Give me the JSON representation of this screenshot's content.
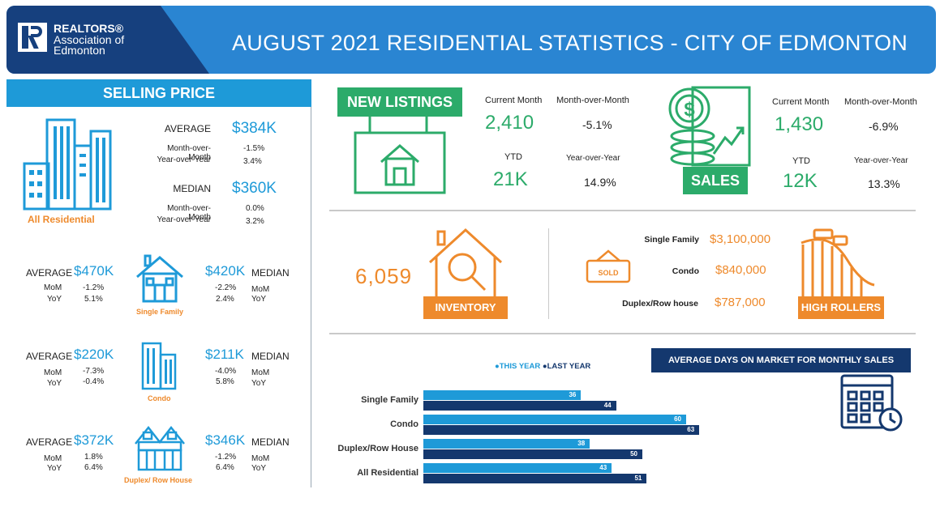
{
  "header": {
    "logo_line1": "REALTORS®",
    "logo_line2": "Association of",
    "logo_line3": "Edmonton",
    "title": "AUGUST 2021 RESIDENTIAL STATISTICS - CITY OF EDMONTON"
  },
  "colors": {
    "brand_blue": "#1e9ad8",
    "navy": "#14386e",
    "green": "#2cab6a",
    "orange": "#ee8a2c"
  },
  "selling_price": {
    "heading": "SELLING PRICE",
    "all_residential": {
      "label": "All Residential",
      "average_label": "AVERAGE",
      "average": "$384K",
      "mom_label": "Month-over-Month",
      "avg_mom": "-1.5%",
      "yoy_label": "Year-over-Year",
      "avg_yoy": "3.4%",
      "median_label": "MEDIAN",
      "median": "$360K",
      "med_mom": "0.0%",
      "med_yoy": "3.2%"
    },
    "types": [
      {
        "label": "Single Family",
        "average": "$470K",
        "avg_mom": "-1.2%",
        "avg_yoy": "5.1%",
        "median": "$420K",
        "med_mom": "-2.2%",
        "med_yoy": "2.4%"
      },
      {
        "label": "Condo",
        "average": "$220K",
        "avg_mom": "-7.3%",
        "avg_yoy": "-0.4%",
        "median": "$211K",
        "med_mom": "-4.0%",
        "med_yoy": "5.8%"
      },
      {
        "label": "Duplex/ Row House",
        "average": "$372K",
        "avg_mom": "1.8%",
        "avg_yoy": "6.4%",
        "median": "$346K",
        "med_mom": "-1.2%",
        "med_yoy": "6.4%"
      }
    ],
    "average_label": "AVERAGE",
    "median_label": "MEDIAN",
    "mom_label": "MoM",
    "yoy_label": "YoY"
  },
  "new_listings": {
    "heading": "NEW LISTINGS",
    "current_month_label": "Current Month",
    "current_month": "2,410",
    "mom_label": "Month-over-Month",
    "mom": "-5.1%",
    "ytd_label": "YTD",
    "ytd": "21K",
    "yoy_label": "Year-over-Year",
    "yoy": "14.9%"
  },
  "sales": {
    "heading": "SALES",
    "current_month_label": "Current Month",
    "current_month": "1,430",
    "mom_label": "Month-over-Month",
    "mom": "-6.9%",
    "ytd_label": "YTD",
    "ytd": "12K",
    "yoy_label": "Year-over-Year",
    "yoy": "13.3%"
  },
  "inventory": {
    "value": "6,059",
    "label": "INVENTORY"
  },
  "high_rollers": {
    "label": "HIGH ROLLERS",
    "sold_sign": "SOLD",
    "items": [
      {
        "type": "Single Family",
        "price": "$3,100,000"
      },
      {
        "type": "Condo",
        "price": "$840,000"
      },
      {
        "type": "Duplex/Row house",
        "price": "$787,000"
      }
    ]
  },
  "chart_data": {
    "type": "bar",
    "orientation": "horizontal",
    "title": "AVERAGE DAYS ON MARKET FOR MONTHLY SALES",
    "legend": [
      "●THIS YEAR",
      "●LAST YEAR"
    ],
    "legend_position": "top",
    "categories": [
      "Single Family",
      "Condo",
      "Duplex/Row House",
      "All Residential"
    ],
    "series": [
      {
        "name": "THIS YEAR",
        "color": "#1e9ad8",
        "values": [
          36,
          60,
          38,
          43
        ]
      },
      {
        "name": "LAST YEAR",
        "color": "#14386e",
        "values": [
          44,
          63,
          50,
          51
        ]
      }
    ],
    "grid": false
  }
}
